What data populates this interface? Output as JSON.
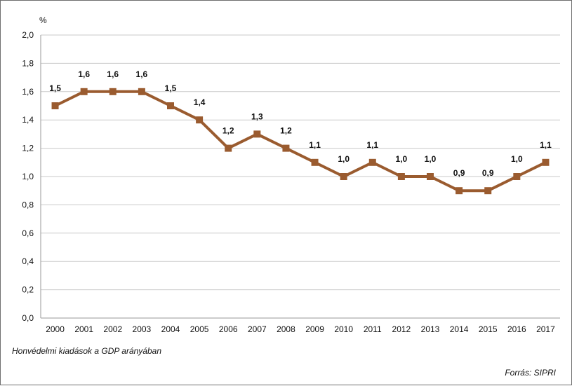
{
  "caption": "Honvédelmi kiadások a GDP arányában",
  "source": "Forrás: SIPRI",
  "chart_data": {
    "type": "line",
    "title": "",
    "ylabel": "%",
    "xlabel": "",
    "ylim": [
      0,
      2.0
    ],
    "yticks": [
      0,
      0.2,
      0.4,
      0.6,
      0.8,
      1.0,
      1.2,
      1.4,
      1.6,
      1.8,
      2.0
    ],
    "ytick_labels": [
      "0,0",
      "0,2",
      "0,4",
      "0,6",
      "0,8",
      "1,0",
      "1,2",
      "1,4",
      "1,6",
      "1,8",
      "2,0"
    ],
    "grid": true,
    "legend": "none",
    "categories": [
      "2000",
      "2001",
      "2002",
      "2003",
      "2004",
      "2005",
      "2006",
      "2007",
      "2008",
      "2009",
      "2010",
      "2011",
      "2012",
      "2013",
      "2014",
      "2015",
      "2016",
      "2017"
    ],
    "series": [
      {
        "values": [
          1.5,
          1.6,
          1.6,
          1.6,
          1.5,
          1.4,
          1.2,
          1.3,
          1.2,
          1.1,
          1.0,
          1.1,
          1.0,
          1.0,
          0.9,
          0.9,
          1.0,
          1.1
        ],
        "labels": [
          "1,5",
          "1,6",
          "1,6",
          "1,6",
          "1,5",
          "1,4",
          "1,2",
          "1,3",
          "1,2",
          "1,1",
          "1,0",
          "1,1",
          "1,0",
          "1,0",
          "0,9",
          "0,9",
          "1,0",
          "1,1"
        ],
        "color": "#9a5b2f"
      }
    ],
    "colors": {
      "line": "#9a5b2f",
      "marker": "#9a5b2f",
      "grid": "#c9c9c9",
      "axis": "#9a9a9a"
    }
  }
}
